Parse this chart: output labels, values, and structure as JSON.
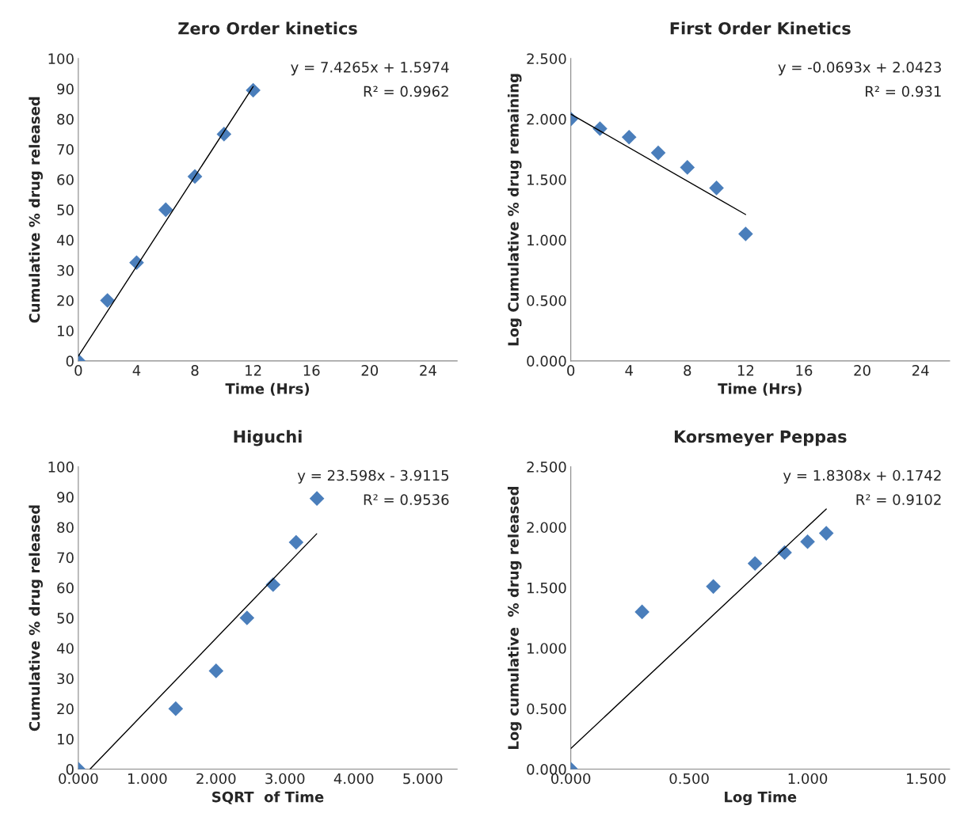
{
  "chart_data": [
    {
      "type": "scatter",
      "title": "Zero Order kinetics",
      "xlabel": "Time (Hrs)",
      "ylabel": "Cumulative % drug released",
      "marker": "diamond",
      "xlim": [
        0,
        26
      ],
      "xticks": [
        0,
        4,
        8,
        12,
        16,
        20,
        24
      ],
      "ylim": [
        0,
        100
      ],
      "yticks": [
        0,
        10,
        20,
        30,
        40,
        50,
        60,
        70,
        80,
        90,
        100
      ],
      "annotations": [
        "y = 7.4265x + 1.5974",
        "R² = 0.9962"
      ],
      "series": [
        {
          "color": "#4a7ebb",
          "x": [
            0,
            2,
            4,
            6,
            8,
            10,
            12
          ],
          "values": [
            0,
            20,
            32.5,
            50,
            61,
            75,
            89.5
          ]
        },
        {
          "type": "line",
          "color": "#000000",
          "marker": "none",
          "x": [
            0,
            12
          ],
          "values": [
            1.6,
            90.7
          ]
        }
      ]
    },
    {
      "type": "scatter",
      "title": "First Order Kinetics",
      "xlabel": "Time (Hrs)",
      "ylabel": "Log Cumulative % drug remaining",
      "marker": "diamond",
      "xlim": [
        0,
        26
      ],
      "xticks": [
        0,
        4,
        8,
        12,
        16,
        20,
        24
      ],
      "ylim": [
        0,
        2.5
      ],
      "yticks": [
        {
          "value": 0,
          "label": "0.000"
        },
        {
          "value": 0.5,
          "label": "0.500"
        },
        {
          "value": 1,
          "label": "1.000"
        },
        {
          "value": 1.5,
          "label": "1.500"
        },
        {
          "value": 2,
          "label": "2.000"
        },
        {
          "value": 2.5,
          "label": "2.500"
        }
      ],
      "annotations": [
        "y = -0.0693x + 2.0423",
        "R² = 0.931"
      ],
      "series": [
        {
          "color": "#4a7ebb",
          "x": [
            0,
            2,
            4,
            6,
            8,
            10,
            12
          ],
          "values": [
            2.0,
            1.92,
            1.85,
            1.72,
            1.6,
            1.43,
            1.05
          ]
        },
        {
          "type": "line",
          "color": "#000000",
          "marker": "none",
          "x": [
            0,
            12
          ],
          "values": [
            2.04,
            1.21
          ]
        }
      ]
    },
    {
      "type": "scatter",
      "title": "Higuchi",
      "xlabel": "SQRT  of Time",
      "ylabel": "Cumulative % drug released",
      "marker": "diamond",
      "xlim": [
        0,
        5.5
      ],
      "xticks": [
        {
          "value": 0,
          "label": "0.000"
        },
        {
          "value": 1,
          "label": "1.000"
        },
        {
          "value": 2,
          "label": "2.000"
        },
        {
          "value": 3,
          "label": "3.000"
        },
        {
          "value": 4,
          "label": "4.000"
        },
        {
          "value": 5,
          "label": "5.000"
        }
      ],
      "ylim": [
        0,
        100
      ],
      "yticks": [
        0,
        10,
        20,
        30,
        40,
        50,
        60,
        70,
        80,
        90,
        100
      ],
      "annotations": [
        "y = 23.598x - 3.9115",
        "R² = 0.9536"
      ],
      "series": [
        {
          "color": "#4a7ebb",
          "x": [
            0,
            1.414,
            2,
            2.449,
            2.828,
            3.162,
            3.464
          ],
          "values": [
            0,
            20,
            32.5,
            50,
            61,
            75,
            89.5
          ]
        },
        {
          "type": "line",
          "color": "#000000",
          "marker": "none",
          "x": [
            0.17,
            3.46
          ],
          "values": [
            0,
            77.8
          ]
        }
      ]
    },
    {
      "type": "scatter",
      "title": "Korsmeyer Peppas",
      "xlabel": "Log Time",
      "ylabel": "Log cumulative  % drug released",
      "marker": "diamond",
      "xlim": [
        0,
        1.6
      ],
      "xticks": [
        {
          "value": 0,
          "label": "0.000"
        },
        {
          "value": 0.5,
          "label": "0.500"
        },
        {
          "value": 1,
          "label": "1.000"
        },
        {
          "value": 1.5,
          "label": "1.500"
        }
      ],
      "ylim": [
        0,
        2.5
      ],
      "yticks": [
        {
          "value": 0,
          "label": "0.000"
        },
        {
          "value": 0.5,
          "label": "0.500"
        },
        {
          "value": 1,
          "label": "1.000"
        },
        {
          "value": 1.5,
          "label": "1.500"
        },
        {
          "value": 2,
          "label": "2.000"
        },
        {
          "value": 2.5,
          "label": "2.500"
        }
      ],
      "annotations": [
        "y = 1.8308x + 0.1742",
        "R² = 0.9102"
      ],
      "series": [
        {
          "color": "#4a7ebb",
          "x": [
            0,
            0.301,
            0.602,
            0.778,
            0.903,
            1.0,
            1.079
          ],
          "values": [
            0,
            1.3,
            1.51,
            1.7,
            1.79,
            1.88,
            1.95
          ]
        },
        {
          "type": "line",
          "color": "#000000",
          "marker": "none",
          "x": [
            0,
            1.079
          ],
          "values": [
            0.17,
            2.15
          ]
        }
      ]
    }
  ]
}
